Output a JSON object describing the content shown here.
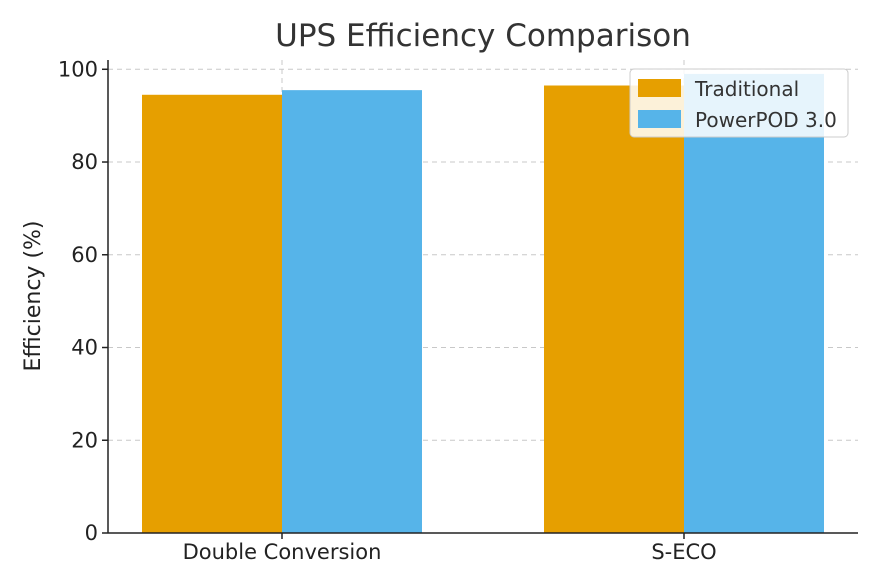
{
  "chart_data": {
    "type": "bar",
    "title": "UPS Efficiency Comparison",
    "xlabel": "",
    "ylabel": "Efficiency (%)",
    "categories": [
      "Double Conversion",
      "S-ECO"
    ],
    "series": [
      {
        "name": "Traditional",
        "values": [
          94.5,
          96.5
        ],
        "color": "#E69F00"
      },
      {
        "name": "PowerPOD 3.0",
        "values": [
          95.5,
          99.0
        ],
        "color": "#56B4E9"
      }
    ],
    "ylim": [
      0,
      102
    ],
    "yticks": [
      0,
      20,
      40,
      60,
      80,
      100
    ],
    "grid": true,
    "legend_position": "top-right"
  }
}
